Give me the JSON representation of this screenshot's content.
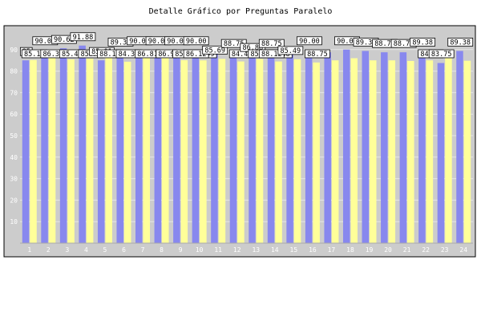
{
  "title": "Detalle Gráfico por Preguntas Paralelo",
  "chart_data": {
    "type": "bar",
    "title": "Detalle Gráfico por Preguntas Paralelo",
    "xlabel": "",
    "ylabel": "",
    "ylim": [
      0,
      100
    ],
    "y_ticks": [
      "10",
      "20",
      "30",
      "40",
      "50",
      "60",
      "70",
      "80",
      "90"
    ],
    "categories": [
      "1",
      "2",
      "3",
      "4",
      "5",
      "6",
      "7",
      "8",
      "9",
      "10",
      "11",
      "12",
      "13",
      "14",
      "15",
      "16",
      "17",
      "18",
      "19",
      "20",
      "21",
      "22",
      "23",
      "24"
    ],
    "grid": true,
    "legend": "none",
    "colors": {
      "series_a": "#8888ee",
      "series_b": "#ffff99",
      "plot_bg": "#cccccc",
      "frame": "#000000"
    },
    "series": [
      {
        "values": [
          85.0,
          90.0,
          90.62,
          91.88,
          85.01,
          89.38,
          90.0,
          90.0,
          90.0,
          86.12,
          88.75,
          86.88,
          88.75,
          88.12,
          90.0,
          88.75,
          88.75,
          90.0,
          89.38,
          88.75,
          88.75,
          89.38,
          83.75,
          89.38
        ]
      },
      {
        "values": [
          85.17,
          86.37,
          85.45,
          85.79,
          88.12,
          84.37,
          86.81,
          86.9,
          85.06,
          84.99,
          85.69,
          84.49,
          85.63,
          84.48,
          85.49,
          84.0,
          85.0,
          86.0,
          85.0,
          85.0,
          84.71,
          85.0,
          86.0,
          84.81
        ]
      }
    ],
    "data_labels": [
      {
        "category": "1",
        "text": "85"
      },
      {
        "category": "1",
        "text": "85.17"
      },
      {
        "category": "2",
        "text": "90.00"
      },
      {
        "category": "2",
        "text": "86.37"
      },
      {
        "category": "3",
        "text": "90.62"
      },
      {
        "category": "3",
        "text": "85.45"
      },
      {
        "category": "4",
        "text": "91.88"
      },
      {
        "category": "4",
        "text": "85.79"
      },
      {
        "category": "5",
        "text": "85.01"
      },
      {
        "category": "5",
        "text": "88.12"
      },
      {
        "category": "6",
        "text": "89.38"
      },
      {
        "category": "6",
        "text": "84.37"
      },
      {
        "category": "7",
        "text": "90.00"
      },
      {
        "category": "7",
        "text": "86.81"
      },
      {
        "category": "8",
        "text": "90.00"
      },
      {
        "category": "8",
        "text": "86.9"
      },
      {
        "category": "9",
        "text": "90.00"
      },
      {
        "category": "9",
        "text": "85.06"
      },
      {
        "category": "10",
        "text": "90.00"
      },
      {
        "category": "10",
        "text": "84.99"
      },
      {
        "category": "10",
        "text": "86.12"
      },
      {
        "category": "11",
        "text": "85.69"
      },
      {
        "category": "12",
        "text": "88.75"
      },
      {
        "category": "12",
        "text": "84.49"
      },
      {
        "category": "13",
        "text": "86.88"
      },
      {
        "category": "13",
        "text": "85.63"
      },
      {
        "category": "14",
        "text": "88.75"
      },
      {
        "category": "14",
        "text": "84.48"
      },
      {
        "category": "14",
        "text": "88.12"
      },
      {
        "category": "15",
        "text": "85.49"
      },
      {
        "category": "16",
        "text": "90.00"
      },
      {
        "category": "16",
        "text": "88.75"
      },
      {
        "category": "18",
        "text": "90.00"
      },
      {
        "category": "19",
        "text": "89.38"
      },
      {
        "category": "20",
        "text": "88.75"
      },
      {
        "category": "21",
        "text": "88.75"
      },
      {
        "category": "22",
        "text": "89.38"
      },
      {
        "category": "22",
        "text": "84.71"
      },
      {
        "category": "23",
        "text": "83.75"
      },
      {
        "category": "24",
        "text": "89.38"
      }
    ]
  }
}
